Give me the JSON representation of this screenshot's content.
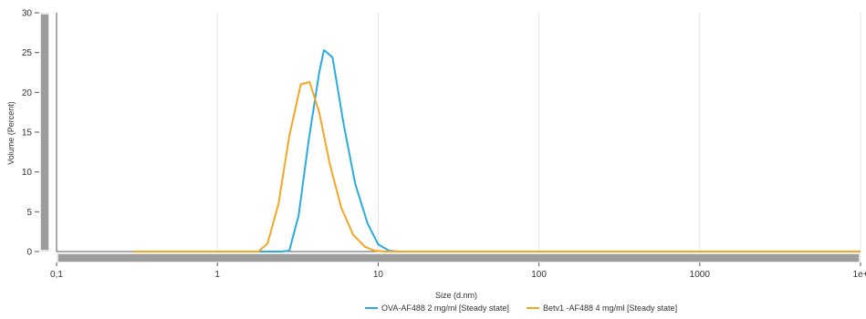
{
  "chart_data": {
    "type": "line",
    "xlabel": "Size (d.nm)",
    "ylabel": "Volume (Percent)",
    "x_scale": "log",
    "xlim": [
      0.1,
      10000
    ],
    "ylim": [
      0,
      30
    ],
    "x_ticks": [
      {
        "value": 0.1,
        "label": "0,1"
      },
      {
        "value": 1,
        "label": "1"
      },
      {
        "value": 10,
        "label": "10"
      },
      {
        "value": 100,
        "label": "100"
      },
      {
        "value": 1000,
        "label": "1000"
      },
      {
        "value": 10000,
        "label": "1e+"
      }
    ],
    "y_ticks": [
      0,
      5,
      10,
      15,
      20,
      25,
      30
    ],
    "grid": true,
    "legend_position": "bottom",
    "series": [
      {
        "name": "OVA-AF488 2 mg/ml [Steady state]",
        "color": "#29ABE2",
        "points": [
          [
            0.3,
            0
          ],
          [
            1.8,
            0
          ],
          [
            2.0,
            0
          ],
          [
            2.5,
            0
          ],
          [
            2.8,
            0.1
          ],
          [
            3.2,
            4.5
          ],
          [
            3.7,
            14
          ],
          [
            4.3,
            22.5
          ],
          [
            4.6,
            25.3
          ],
          [
            5.2,
            24.4
          ],
          [
            6.1,
            16
          ],
          [
            7.2,
            8.5
          ],
          [
            8.6,
            3.5
          ],
          [
            10.0,
            0.9
          ],
          [
            11.7,
            0.1
          ],
          [
            13.5,
            0
          ],
          [
            100,
            0
          ],
          [
            1000,
            0
          ],
          [
            10000,
            0
          ]
        ]
      },
      {
        "name": "Betv1 -AF488 4 mg/ml [Steady state]",
        "color": "#F5A623",
        "points": [
          [
            0.3,
            0
          ],
          [
            1.0,
            0
          ],
          [
            1.8,
            0
          ],
          [
            2.05,
            1
          ],
          [
            2.4,
            6
          ],
          [
            2.8,
            14.5
          ],
          [
            3.3,
            21
          ],
          [
            3.75,
            21.3
          ],
          [
            4.3,
            17.5
          ],
          [
            5.0,
            11
          ],
          [
            5.9,
            5.5
          ],
          [
            7.0,
            2.1
          ],
          [
            8.3,
            0.6
          ],
          [
            9.5,
            0.1
          ],
          [
            11.0,
            0
          ],
          [
            100,
            0
          ],
          [
            1000,
            0
          ],
          [
            10000,
            0
          ]
        ]
      }
    ]
  }
}
